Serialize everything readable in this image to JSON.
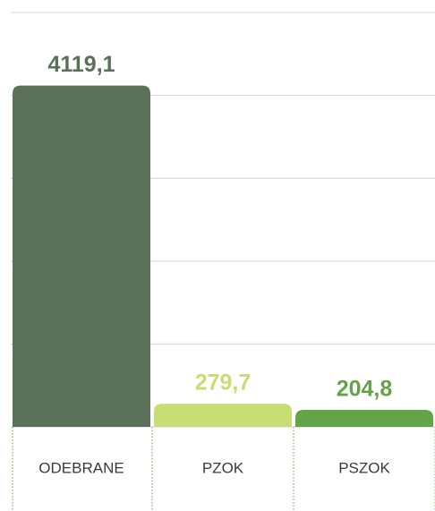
{
  "chart_data": {
    "type": "bar",
    "categories": [
      "ODEBRANE",
      "PZOK",
      "PSZOK"
    ],
    "values": [
      4119.1,
      279.7,
      204.8
    ],
    "value_labels": [
      "4119,1",
      "279,7",
      "204,8"
    ],
    "colors": [
      "#5b7059",
      "#c8de73",
      "#62a447"
    ],
    "ylim": [
      0,
      5000
    ],
    "yticks": [
      0,
      1000,
      2000,
      3000,
      4000,
      5000
    ],
    "grid": true
  }
}
